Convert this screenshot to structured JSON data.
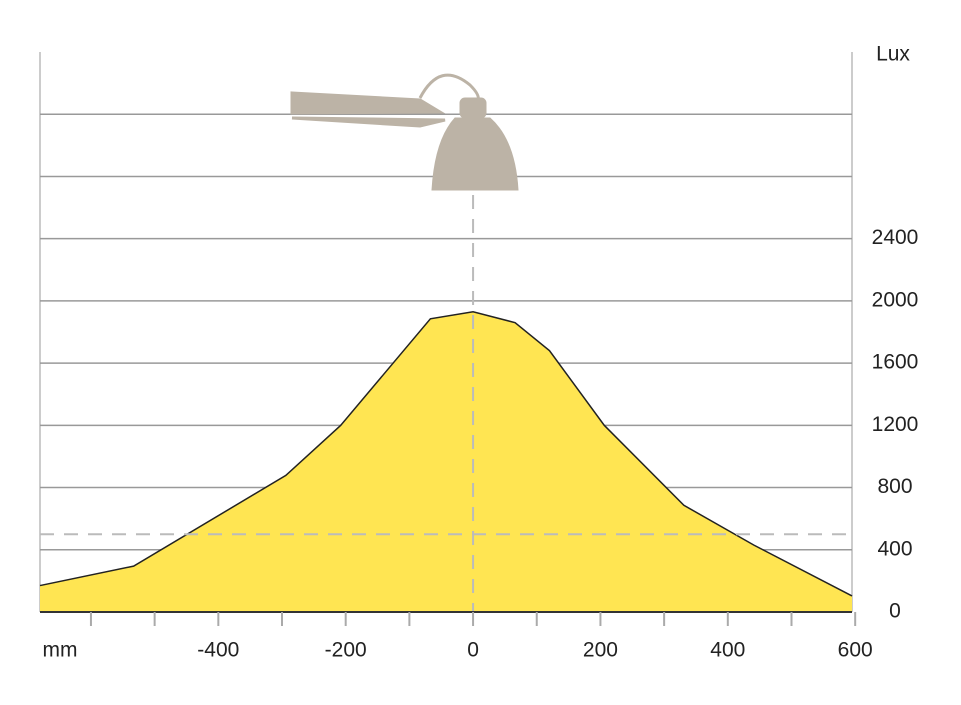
{
  "chart_data": {
    "type": "area",
    "ylabel": "Lux",
    "xlabel": "mm",
    "x": [
      -680,
      -533,
      -294,
      -208,
      -67,
      0,
      66,
      120,
      206,
      331,
      441,
      595
    ],
    "values": [
      170,
      295,
      878,
      1199,
      1885,
      1930,
      1860,
      1680,
      1200,
      686,
      430,
      103
    ],
    "color": "#ffe552",
    "xlim": [
      -680,
      595
    ],
    "xticks": [
      -400,
      -200,
      0,
      200,
      400,
      600
    ],
    "ylim": [
      0,
      3600
    ],
    "yticks": [
      0,
      400,
      800,
      1200,
      1600,
      2000,
      2400
    ],
    "reference_line": 500,
    "grid": true
  }
}
